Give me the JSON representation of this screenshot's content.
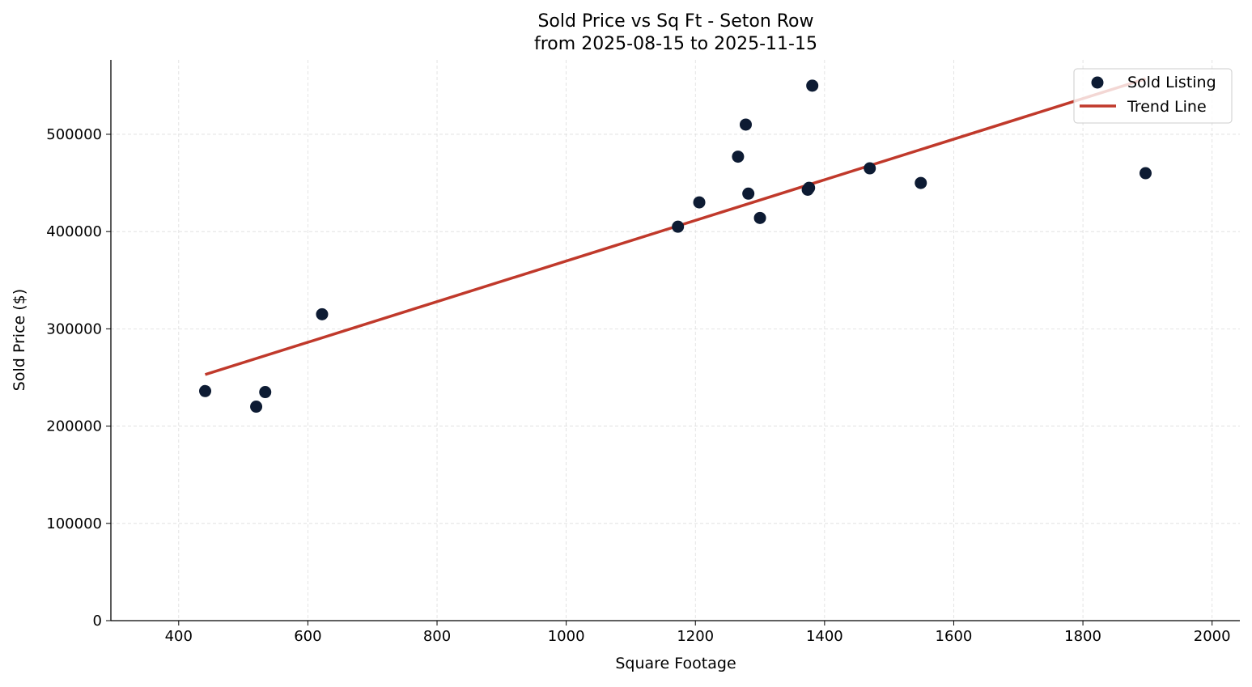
{
  "chart_data": {
    "type": "scatter",
    "title": "Sold Price vs Sq Ft - Seton Row",
    "subtitle": "from 2025-08-15 to 2025-11-15",
    "xlabel": "Square Footage",
    "ylabel": "Sold Price ($)",
    "xlim": [
      295,
      2043
    ],
    "ylim": [
      0,
      576500
    ],
    "xticks": [
      400,
      600,
      800,
      1000,
      1200,
      1400,
      1600,
      1800,
      2000
    ],
    "yticks": [
      0,
      100000,
      200000,
      300000,
      400000,
      500000
    ],
    "grid": true,
    "legend_position": "top-right",
    "series": [
      {
        "name": "Sold Listing",
        "type": "scatter",
        "color": "#0d1b33",
        "points": [
          [
            441,
            236000
          ],
          [
            520,
            220000
          ],
          [
            534,
            235000
          ],
          [
            622,
            315000
          ],
          [
            1173,
            405000
          ],
          [
            1206,
            430000
          ],
          [
            1266,
            477000
          ],
          [
            1278,
            510000
          ],
          [
            1282,
            439000
          ],
          [
            1300,
            414000
          ],
          [
            1374,
            443000
          ],
          [
            1376,
            445000
          ],
          [
            1381,
            550000
          ],
          [
            1470,
            465000
          ],
          [
            1549,
            450000
          ],
          [
            1897,
            460000
          ]
        ]
      },
      {
        "name": "Trend Line",
        "type": "line",
        "color": "#c0392b",
        "points": [
          [
            441,
            253000
          ],
          [
            1897,
            557000
          ]
        ]
      }
    ]
  }
}
